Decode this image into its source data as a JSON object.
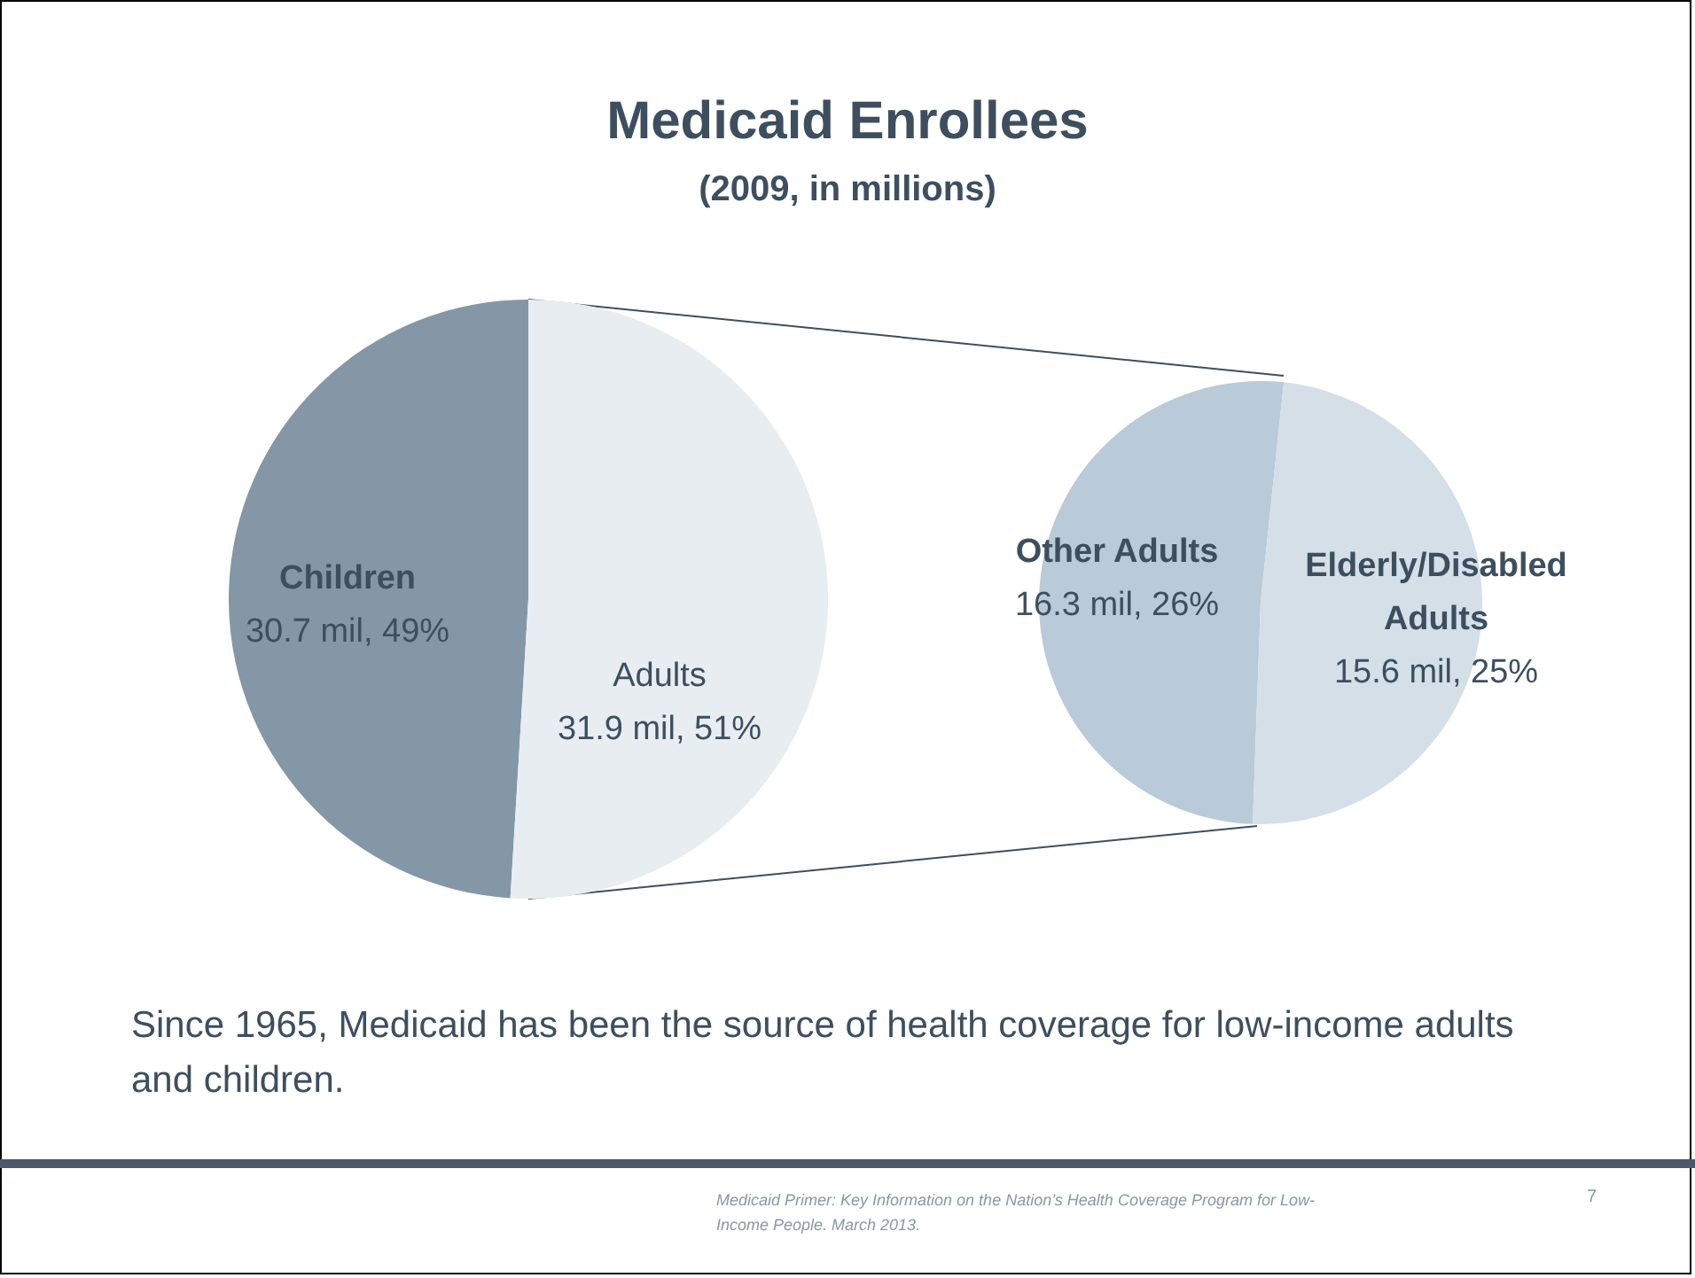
{
  "chart_data": [
    {
      "type": "pie",
      "title": "Medicaid Enrollees",
      "subtitle": "(2009, in millions)",
      "categories": [
        "Children",
        "Adults"
      ],
      "values": [
        30.7,
        31.9
      ],
      "colors": [
        "#8497a6",
        "#e8edf1"
      ],
      "value_labels": [
        "30.7 mil, 49%",
        "31.9 mil, 51%"
      ],
      "annotations": [
        "Since 1965, Medicaid has been the source of health coverage for low-income adults and children.",
        "Medicaid Primer: Key Information on the Nation’s Health Coverage Program for Low-Income People. March 2013.",
        "7"
      ]
    },
    {
      "type": "pie",
      "categories": [
        "Other Adults",
        "Elderly/Disabled Adults"
      ],
      "values": [
        16.3,
        15.6
      ],
      "colors": [
        "#b9cad8",
        "#d5dfe8"
      ],
      "value_labels": [
        "16.3 mil, 26%",
        "15.6 mil, 25%"
      ]
    }
  ]
}
